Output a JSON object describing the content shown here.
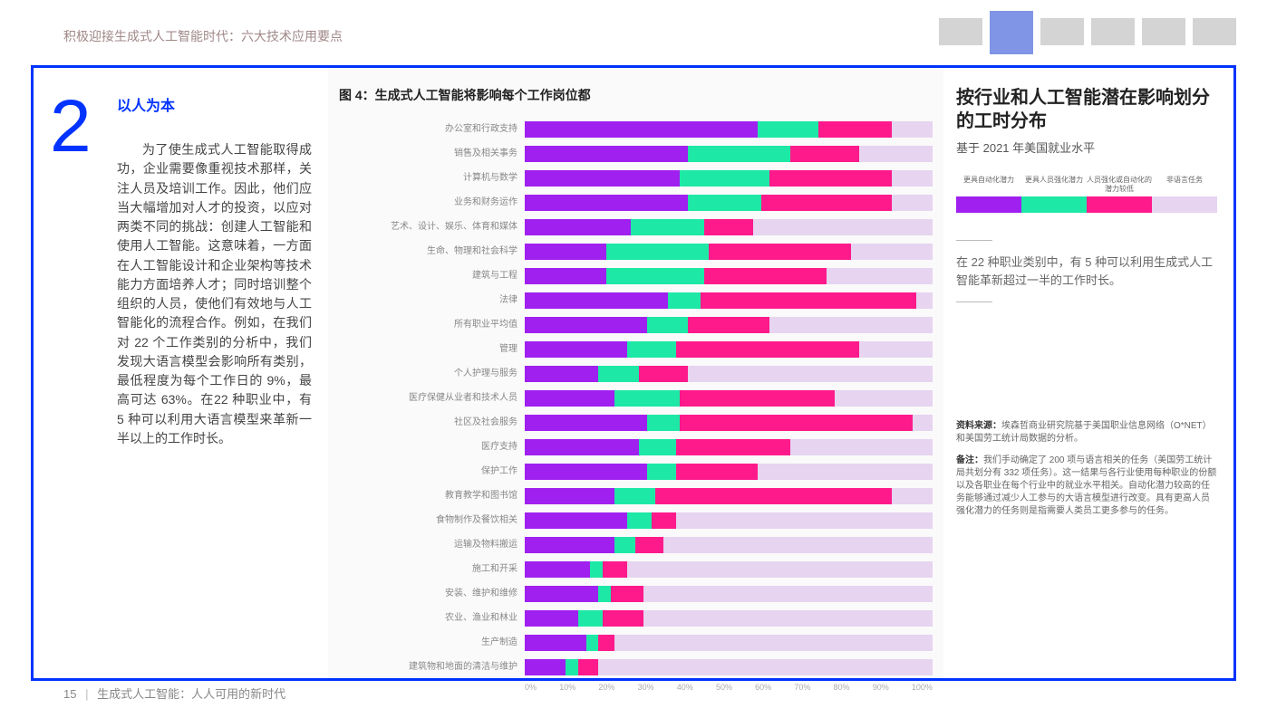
{
  "header": {
    "title": "积极迎接生成式人工智能时代：六大技术应用要点"
  },
  "tabs": {
    "count": 6,
    "active_index": 1,
    "inactive_color": "#d4d4d4",
    "active_color": "#8095e6"
  },
  "section_number": "2",
  "left": {
    "heading": "以人为本",
    "body": "为了使生成式人工智能取得成功，企业需要像重视技术那样，关注人员及培训工作。因此，他们应当大幅增加对人才的投资，以应对两类不同的挑战：创建人工智能和使用人工智能。这意味着，一方面在人工智能设计和企业架构等技术能力方面培养人才；同时培训整个组织的人员，使他们有效地与人工智能化的流程合作。例如，在我们对 22 个工作类别的分析中，我们发现大语言模型会影响所有类别，最低程度为每个工作日的 9%，最高可达 63%。在22 种职业中，有 5 种可以利用大语言模型来革新一半以上的工作时长。"
  },
  "chart": {
    "title": "图 4：生成式人工智能将影响每个工作岗位都",
    "type": "stacked-horizontal-bar",
    "colors": {
      "c1": "#a020f0",
      "c2": "#1ee8a5",
      "c3": "#ff1a8c",
      "c4": "#e6d4f0"
    },
    "axis_ticks": [
      "0%",
      "10%",
      "20%",
      "30%",
      "40%",
      "50%",
      "60%",
      "70%",
      "80%",
      "90%",
      "100%"
    ],
    "rows": [
      {
        "label": "办公室和行政支持",
        "v": [
          57,
          15,
          18,
          10
        ]
      },
      {
        "label": "销售及相关事务",
        "v": [
          40,
          25,
          17,
          18
        ]
      },
      {
        "label": "计算机与数学",
        "v": [
          38,
          22,
          30,
          10
        ]
      },
      {
        "label": "业务和财务运作",
        "v": [
          40,
          18,
          32,
          10
        ]
      },
      {
        "label": "艺术、设计、娱乐、体育和媒体",
        "v": [
          26,
          18,
          12,
          44
        ]
      },
      {
        "label": "生命、物理和社会科学",
        "v": [
          20,
          25,
          35,
          20
        ]
      },
      {
        "label": "建筑与工程",
        "v": [
          20,
          24,
          30,
          26
        ]
      },
      {
        "label": "法律",
        "v": [
          35,
          8,
          53,
          4
        ]
      },
      {
        "label": "所有职业平均值",
        "v": [
          30,
          10,
          20,
          40
        ]
      },
      {
        "label": "管理",
        "v": [
          25,
          12,
          45,
          18
        ]
      },
      {
        "label": "个人护理与服务",
        "v": [
          18,
          10,
          12,
          60
        ]
      },
      {
        "label": "医疗保健从业者和技术人员",
        "v": [
          22,
          16,
          38,
          24
        ]
      },
      {
        "label": "社区及社会服务",
        "v": [
          30,
          8,
          57,
          5
        ]
      },
      {
        "label": "医疗支持",
        "v": [
          28,
          9,
          28,
          35
        ]
      },
      {
        "label": "保护工作",
        "v": [
          30,
          7,
          20,
          43
        ]
      },
      {
        "label": "教育教学和图书馆",
        "v": [
          22,
          10,
          58,
          10
        ]
      },
      {
        "label": "食物制作及餐饮相关",
        "v": [
          25,
          6,
          6,
          63
        ]
      },
      {
        "label": "运输及物料搬运",
        "v": [
          22,
          5,
          7,
          66
        ]
      },
      {
        "label": "施工和开采",
        "v": [
          16,
          3,
          6,
          75
        ]
      },
      {
        "label": "安装、维护和维修",
        "v": [
          18,
          3,
          8,
          71
        ]
      },
      {
        "label": "农业、渔业和林业",
        "v": [
          13,
          6,
          10,
          71
        ]
      },
      {
        "label": "生产制造",
        "v": [
          15,
          3,
          4,
          78
        ]
      },
      {
        "label": "建筑物和地面的清洁与维护",
        "v": [
          10,
          3,
          5,
          82
        ]
      }
    ]
  },
  "right": {
    "title": "按行业和人工智能潜在影响划分的工时分布",
    "subtitle": "基于 2021 年美国就业水平",
    "legend": [
      "更具自动化潜力",
      "更具人员强化潜力",
      "人员强化或自动化的潜力较低",
      "非语言任务"
    ],
    "insight": "在 22 种职业类别中，有 5 种可以利用生成式人工智能革新超过一半的工作时长。",
    "source_label": "资料来源：",
    "source": "埃森哲商业研究院基于美国职业信息网络（O*NET）和美国劳工统计局数据的分析。",
    "note_label": "备注：",
    "note": "我们手动确定了 200 项与语言相关的任务（美国劳工统计局共划分有 332 项任务）。这一结果与各行业使用每种职业的份额以及各职业在每个行业中的就业水平相关。自动化潜力较高的任务能够通过减少人工参与的大语言模型进行改变。具有更高人员强化潜力的任务则是指需要人类员工更多参与的任务。"
  },
  "footer": {
    "page": "15",
    "sep": "|",
    "title": "生成式人工智能：人人可用的新时代"
  },
  "style": {
    "accent": "#0033ff"
  }
}
